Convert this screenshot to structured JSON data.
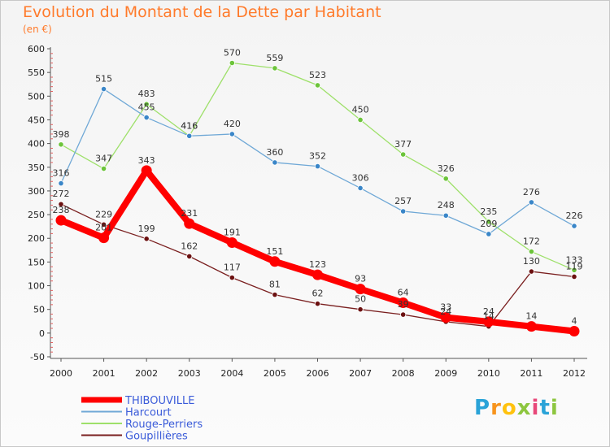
{
  "header": {
    "title": "Evolution du Montant de la Dette par Habitant",
    "unit": "(en €)"
  },
  "logo": {
    "text": "Proxiti",
    "letters": [
      "P",
      "r",
      "o",
      "x",
      "i",
      "t",
      "i"
    ]
  },
  "chart_data": {
    "type": "line",
    "title": "Evolution du Montant de la Dette par Habitant",
    "ylabel": "(en €)",
    "xlabel": "",
    "x": [
      2000,
      2001,
      2002,
      2003,
      2004,
      2005,
      2006,
      2007,
      2008,
      2009,
      2010,
      2011,
      2012
    ],
    "ylim": [
      -50,
      600
    ],
    "yticks": [
      -50,
      0,
      50,
      100,
      150,
      200,
      250,
      300,
      350,
      400,
      450,
      500,
      550,
      600
    ],
    "grid": false,
    "legend_position": "bottom-left",
    "series": [
      {
        "name": "Goupillières",
        "color": "#7a1f1f",
        "dot_color": "#6b1010",
        "values": [
          272,
          229,
          199,
          162,
          117,
          81,
          62,
          50,
          39,
          24,
          14,
          130,
          119
        ]
      },
      {
        "name": "Rouge-Perriers",
        "color": "#9ee06a",
        "dot_color": "#6cc43a",
        "values": [
          398,
          347,
          483,
          416,
          570,
          559,
          523,
          450,
          377,
          326,
          235,
          172,
          133
        ]
      },
      {
        "name": "Harcourt",
        "color": "#6fa8d6",
        "dot_color": "#3a86c8",
        "values": [
          316,
          515,
          455,
          416,
          420,
          360,
          352,
          306,
          257,
          248,
          209,
          276,
          226
        ]
      },
      {
        "name": "THIBOUVILLE",
        "color": "#ff0000",
        "dot_color": "#ff0000",
        "values": [
          238,
          201,
          343,
          231,
          191,
          151,
          123,
          93,
          64,
          33,
          24,
          14,
          4
        ]
      }
    ],
    "legend": [
      "THIBOUVILLE",
      "Harcourt",
      "Rouge-Perriers",
      "Goupillières"
    ]
  }
}
